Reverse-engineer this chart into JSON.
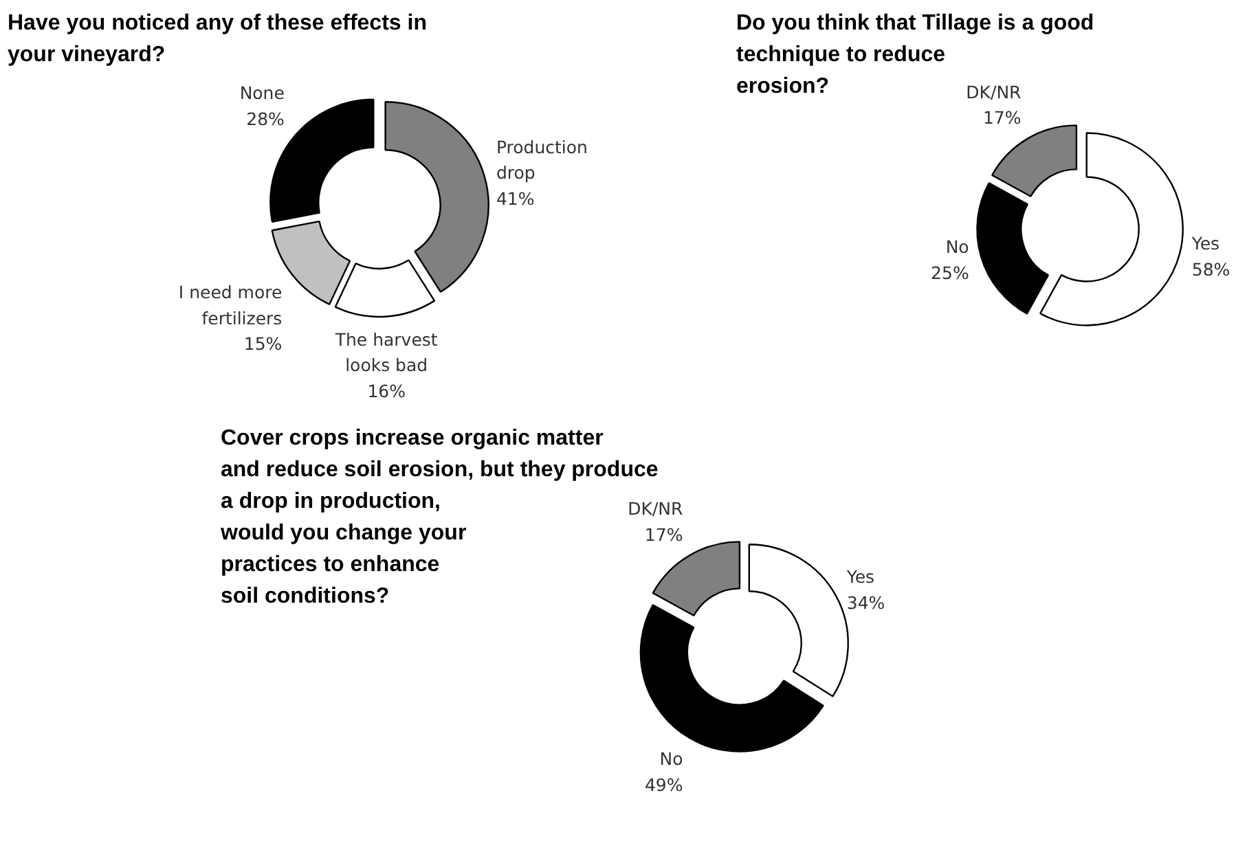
{
  "chart_data": [
    {
      "type": "donut",
      "title": "Have you noticed any of these effects in\n your vineyard?",
      "categories": [
        "Production\ndrop",
        "The harvest\nlooks bad",
        "I need more\nfertilizers",
        "None"
      ],
      "values": [
        41,
        16,
        15,
        28
      ],
      "colors": [
        "#808080",
        "#ffffff",
        "#c0c0c0",
        "#000000"
      ],
      "value_labels": [
        "41%",
        "16%",
        "15%",
        "28%"
      ]
    },
    {
      "type": "donut",
      "title": "Do you think that Tillage is a good\ntechnique to reduce\n erosion?",
      "categories": [
        "Yes",
        "No",
        "DK/NR"
      ],
      "values": [
        58,
        25,
        17
      ],
      "colors": [
        "#ffffff",
        "#000000",
        "#808080"
      ],
      "value_labels": [
        "58%",
        "25%",
        "17%"
      ]
    },
    {
      "type": "donut",
      "title": "Cover crops increase organic matter\n and reduce soil erosion, but they produce\n a drop in production,\n would you change your\n practices to enhance\n soil conditions?",
      "categories": [
        "Yes",
        "No",
        "DK/NR"
      ],
      "values": [
        34,
        49,
        17
      ],
      "colors": [
        "#ffffff",
        "#000000",
        "#808080"
      ],
      "value_labels": [
        "34%",
        "49%",
        "17%"
      ]
    }
  ]
}
